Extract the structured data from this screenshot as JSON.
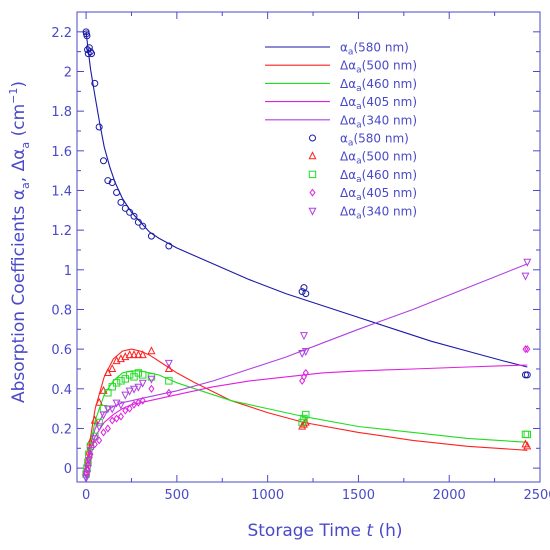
{
  "chart_data": {
    "type": "scatter",
    "ylabel_prefix": "Absorption Coefficients  ",
    "ylabel_alpha1": "α",
    "ylabel_sub1": "a",
    "ylabel_mid": ", Δα",
    "ylabel_sub2": "a",
    "ylabel_unit_open": "  (cm",
    "ylabel_sup": "−1",
    "ylabel_unit_close": ")",
    "xlabel_text": "Storage Time  ",
    "xlabel_italic": "t",
    "xlabel_unit": "  (h)",
    "xlim": [
      -50,
      2500
    ],
    "ylim": [
      -0.07,
      2.3
    ],
    "x_ticks": [
      0,
      500,
      1000,
      1500,
      2000,
      2500
    ],
    "x_tick_labels": [
      "0",
      "500",
      "1000",
      "1500",
      "2000",
      "2500"
    ],
    "y_ticks": [
      0,
      0.2,
      0.4,
      0.6,
      0.8,
      1,
      1.2,
      1.4,
      1.6,
      1.8,
      2,
      2.2
    ],
    "y_tick_labels": [
      "0",
      "0.2",
      "0.4",
      "0.6",
      "0.8",
      "1",
      "1.2",
      "1.4",
      "1.6",
      "1.8",
      "2",
      "2.2"
    ],
    "legend": [
      {
        "kind": "line",
        "label_pre": "α",
        "label_sub": "a",
        "label_post": "(580 nm)",
        "color": "#1a1aa8"
      },
      {
        "kind": "line",
        "label_pre": "Δα",
        "label_sub": "a",
        "label_post": "(500 nm)",
        "color": "#ff2020"
      },
      {
        "kind": "line",
        "label_pre": "Δα",
        "label_sub": "a",
        "label_post": "(460 nm)",
        "color": "#20dd20"
      },
      {
        "kind": "line",
        "label_pre": "Δα",
        "label_sub": "a",
        "label_post": "(405 nm)",
        "color": "#e020e0"
      },
      {
        "kind": "line",
        "label_pre": "Δα",
        "label_sub": "a",
        "label_post": "(340 nm)",
        "color": "#b040e0"
      },
      {
        "kind": "marker",
        "marker": "circle",
        "label_pre": "α",
        "label_sub": "a",
        "label_post": "(580 nm)",
        "color": "#1a1aa8"
      },
      {
        "kind": "marker",
        "marker": "triangle-up",
        "label_pre": "Δα",
        "label_sub": "a",
        "label_post": "(500 nm)",
        "color": "#ff2020"
      },
      {
        "kind": "marker",
        "marker": "square",
        "label_pre": "Δα",
        "label_sub": "a",
        "label_post": "(460 nm)",
        "color": "#20dd20"
      },
      {
        "kind": "marker",
        "marker": "diamond",
        "label_pre": "Δα",
        "label_sub": "a",
        "label_post": "(405 nm)",
        "color": "#e020e0"
      },
      {
        "kind": "marker",
        "marker": "triangle-down",
        "label_pre": "Δα",
        "label_sub": "a",
        "label_post": "(340 nm)",
        "color": "#b040e0"
      }
    ],
    "fit_lines": [
      {
        "color": "#1a1aa8",
        "x": [
          0,
          10,
          25,
          50,
          75,
          100,
          130,
          160,
          200,
          250,
          300,
          350,
          400,
          500,
          700,
          900,
          1100,
          1300,
          1500,
          1700,
          1900,
          2100,
          2300,
          2430
        ],
        "y": [
          2.2,
          2.12,
          2.01,
          1.87,
          1.74,
          1.62,
          1.52,
          1.44,
          1.36,
          1.29,
          1.24,
          1.19,
          1.16,
          1.11,
          1.03,
          0.95,
          0.88,
          0.82,
          0.76,
          0.7,
          0.64,
          0.59,
          0.54,
          0.51
        ]
      },
      {
        "color": "#ff2020",
        "x": [
          0,
          20,
          50,
          100,
          150,
          200,
          250,
          300,
          350,
          400,
          500,
          600,
          800,
          1000,
          1200,
          1500,
          1800,
          2100,
          2430
        ],
        "y": [
          0,
          0.13,
          0.3,
          0.46,
          0.55,
          0.59,
          0.6,
          0.59,
          0.57,
          0.54,
          0.48,
          0.43,
          0.34,
          0.28,
          0.23,
          0.18,
          0.14,
          0.11,
          0.09
        ]
      },
      {
        "color": "#20dd20",
        "x": [
          0,
          20,
          50,
          100,
          150,
          200,
          250,
          300,
          350,
          400,
          500,
          600,
          800,
          1000,
          1200,
          1500,
          1800,
          2100,
          2430
        ],
        "y": [
          0,
          0.1,
          0.24,
          0.37,
          0.44,
          0.48,
          0.49,
          0.49,
          0.48,
          0.47,
          0.43,
          0.4,
          0.34,
          0.3,
          0.26,
          0.21,
          0.18,
          0.15,
          0.13
        ]
      },
      {
        "color": "#e020e0",
        "x": [
          0,
          20,
          50,
          100,
          150,
          200,
          250,
          300,
          350,
          400,
          500,
          700,
          900,
          1100,
          1300,
          1500,
          1800,
          2100,
          2430
        ],
        "y": [
          0,
          0.08,
          0.16,
          0.23,
          0.27,
          0.3,
          0.32,
          0.33,
          0.34,
          0.35,
          0.37,
          0.41,
          0.44,
          0.46,
          0.48,
          0.49,
          0.5,
          0.51,
          0.52
        ]
      },
      {
        "color": "#b040e0",
        "x": [
          0,
          20,
          50,
          100,
          150,
          200,
          250,
          300,
          350,
          400,
          500,
          700,
          900,
          1100,
          1300,
          1500,
          1800,
          2100,
          2430
        ],
        "y": [
          0,
          0.1,
          0.2,
          0.28,
          0.31,
          0.33,
          0.34,
          0.35,
          0.36,
          0.37,
          0.39,
          0.44,
          0.5,
          0.56,
          0.63,
          0.7,
          0.8,
          0.91,
          1.03
        ]
      }
    ],
    "series": [
      {
        "marker": "circle",
        "color": "#1a1aa8",
        "x": [
          0,
          2,
          5,
          8,
          12,
          18,
          24,
          30,
          48,
          72,
          96,
          120,
          144,
          168,
          192,
          216,
          240,
          264,
          288,
          312,
          360,
          456,
          1190,
          1200,
          1210,
          2420,
          2430
        ],
        "y": [
          2.2,
          2.19,
          2.18,
          2.11,
          2.09,
          2.12,
          2.1,
          2.09,
          1.94,
          1.72,
          1.55,
          1.45,
          1.44,
          1.39,
          1.34,
          1.31,
          1.29,
          1.27,
          1.24,
          1.22,
          1.17,
          1.12,
          0.89,
          0.91,
          0.88,
          0.47,
          0.47
        ]
      },
      {
        "marker": "triangle-up",
        "color": "#ff2020",
        "x": [
          0,
          5,
          10,
          15,
          24,
          48,
          72,
          96,
          120,
          144,
          168,
          192,
          216,
          240,
          264,
          288,
          312,
          360,
          456,
          1190,
          1200,
          1210,
          2420,
          2430
        ],
        "y": [
          -0.02,
          0.0,
          0.04,
          0.08,
          0.13,
          0.24,
          0.33,
          0.39,
          0.48,
          0.5,
          0.54,
          0.55,
          0.56,
          0.57,
          0.57,
          0.57,
          0.57,
          0.59,
          0.5,
          0.21,
          0.22,
          0.23,
          0.12,
          0.11
        ]
      },
      {
        "marker": "square",
        "color": "#20dd20",
        "x": [
          0,
          5,
          10,
          15,
          24,
          48,
          72,
          96,
          120,
          144,
          168,
          192,
          216,
          240,
          264,
          288,
          312,
          360,
          456,
          1190,
          1200,
          1210,
          2420,
          2430
        ],
        "y": [
          -0.03,
          0.0,
          0.03,
          0.07,
          0.11,
          0.16,
          0.23,
          0.3,
          0.38,
          0.41,
          0.43,
          0.44,
          0.45,
          0.47,
          0.46,
          0.48,
          0.47,
          0.46,
          0.44,
          0.23,
          0.25,
          0.27,
          0.17,
          0.17
        ]
      },
      {
        "marker": "diamond",
        "color": "#e020e0",
        "x": [
          0,
          5,
          10,
          15,
          24,
          48,
          72,
          96,
          120,
          144,
          168,
          192,
          216,
          240,
          264,
          288,
          312,
          360,
          456,
          1190,
          1200,
          1210,
          2420,
          2430
        ],
        "y": [
          -0.03,
          -0.01,
          0.02,
          0.05,
          0.07,
          0.12,
          0.14,
          0.18,
          0.2,
          0.24,
          0.25,
          0.26,
          0.29,
          0.3,
          0.32,
          0.33,
          0.34,
          0.4,
          0.38,
          0.44,
          0.46,
          0.48,
          0.6,
          0.6
        ]
      },
      {
        "marker": "triangle-down",
        "color": "#b040e0",
        "x": [
          0,
          5,
          10,
          15,
          24,
          48,
          72,
          96,
          120,
          144,
          168,
          192,
          216,
          240,
          264,
          288,
          312,
          360,
          456,
          1190,
          1200,
          1210,
          2420,
          2430
        ],
        "y": [
          -0.05,
          -0.03,
          0.0,
          0.04,
          0.09,
          0.15,
          0.21,
          0.27,
          0.3,
          0.3,
          0.33,
          0.32,
          0.37,
          0.39,
          0.4,
          0.41,
          0.43,
          0.45,
          0.53,
          0.58,
          0.67,
          0.59,
          0.97,
          1.04
        ]
      }
    ]
  }
}
